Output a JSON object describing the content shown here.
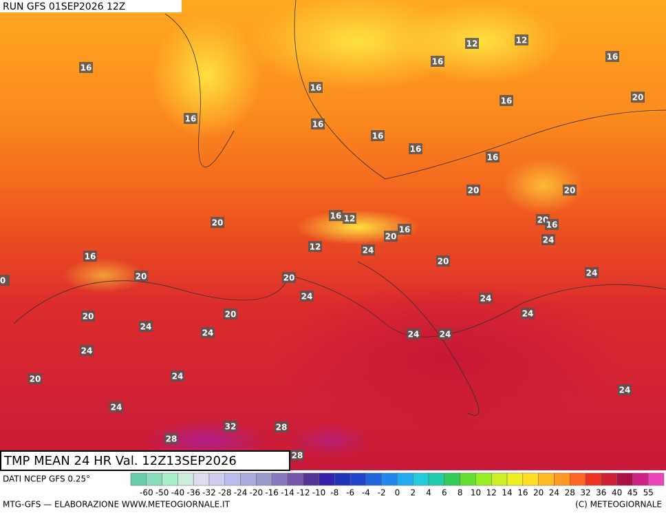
{
  "header": {
    "run": "RUN GFS 01SEP2026 12Z"
  },
  "map_labels": [
    16,
    12,
    12,
    16,
    16,
    16,
    16,
    20,
    16,
    16,
    16,
    16,
    16,
    20,
    20,
    16,
    12,
    20,
    20,
    16,
    16,
    20,
    24,
    12,
    24,
    16,
    20,
    20,
    20,
    24,
    24,
    24,
    "0",
    20,
    24,
    20,
    24,
    24,
    24,
    24,
    24,
    24,
    20,
    24,
    24,
    32,
    28,
    28,
    28
  ],
  "title": "TMP MEAN 24 HR Val. 12Z13SEP2026",
  "source": "DATI NCEP GFS 0.25°",
  "scale": {
    "labels": [
      -60,
      -50,
      -40,
      -36,
      -32,
      -28,
      -24,
      -20,
      -16,
      -14,
      -12,
      -10,
      -8,
      -6,
      -4,
      -2,
      0,
      2,
      4,
      6,
      8,
      10,
      12,
      14,
      16,
      20,
      24,
      28,
      32,
      36,
      40,
      45,
      55
    ],
    "colors": [
      "#66ccaa",
      "#88ddbb",
      "#aaeecc",
      "#cceedd",
      "#ddddee",
      "#ccccee",
      "#bbbbee",
      "#aaaadd",
      "#9999cc",
      "#8877bb",
      "#7755aa",
      "#553399",
      "#3322aa",
      "#2233bb",
      "#2244cc",
      "#2266dd",
      "#2288ee",
      "#22aaee",
      "#22ccdd",
      "#22ccaa",
      "#33cc55",
      "#66dd33",
      "#99ee22",
      "#ccee22",
      "#eeee22",
      "#ffdd22",
      "#ffbb22",
      "#ff9922",
      "#ff6622",
      "#ee3322",
      "#cc2233",
      "#aa1144",
      "#cc2288",
      "#ee44bb"
    ]
  },
  "footer": {
    "left": "MTG-GFS — ELABORAZIONE WWW.METEOGIORNALE.IT",
    "right": "(C) METEOGIORNALE"
  }
}
